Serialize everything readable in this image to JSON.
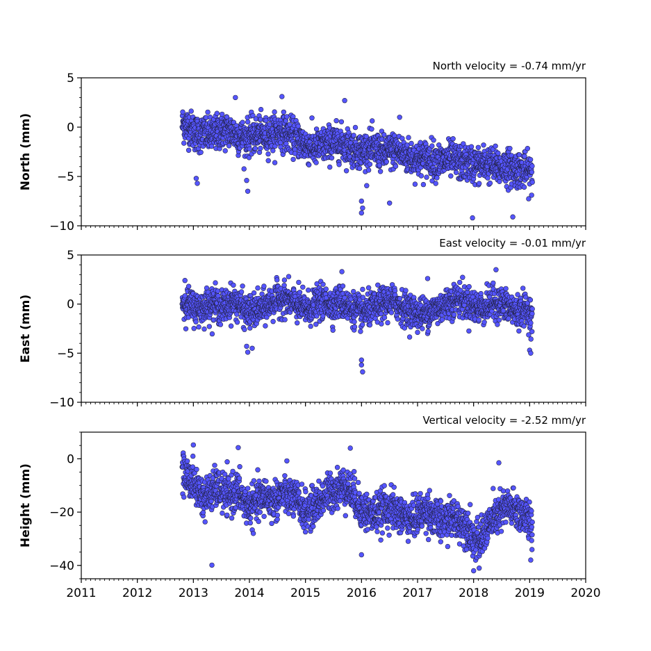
{
  "chart_data": [
    {
      "type": "scatter",
      "panel": "north",
      "title": "North velocity = -0.74 mm/yr",
      "ylabel": "North (mm)",
      "xlim": [
        2011,
        2020
      ],
      "ylim": [
        -10,
        5
      ],
      "yticks": [
        5,
        0,
        -5,
        -10
      ],
      "ytick_labels": [
        "5",
        "0",
        "−5",
        "−10"
      ],
      "marker_color": "#5555ff",
      "marker_edge": "#222244",
      "x": [
        2012.8,
        2012.9,
        2013.0,
        2013.1,
        2013.2,
        2013.3,
        2013.4,
        2013.5,
        2013.6,
        2013.7,
        2013.8,
        2013.9,
        2014.0,
        2014.1,
        2014.2,
        2014.3,
        2014.4,
        2014.5,
        2014.6,
        2014.7,
        2014.8,
        2014.9,
        2015.0,
        2015.1,
        2015.2,
        2015.3,
        2015.4,
        2015.5,
        2015.6,
        2015.7,
        2015.8,
        2015.9,
        2016.0,
        2016.1,
        2016.2,
        2016.3,
        2016.4,
        2016.5,
        2016.6,
        2016.7,
        2016.8,
        2016.9,
        2017.0,
        2017.1,
        2017.2,
        2017.3,
        2017.4,
        2017.5,
        2017.6,
        2017.7,
        2017.8,
        2017.9,
        2018.0,
        2018.1,
        2018.2,
        2018.3,
        2018.4,
        2018.5,
        2018.6,
        2018.7,
        2018.8,
        2018.9,
        2019.0,
        2019.05
      ],
      "y": [
        0.3,
        0.1,
        -0.4,
        -0.8,
        -0.5,
        -0.9,
        -0.6,
        -0.4,
        -0.3,
        -0.5,
        -0.9,
        -1.1,
        -1.0,
        -0.8,
        -0.7,
        -0.9,
        -0.6,
        -0.5,
        -0.4,
        -0.8,
        -1.0,
        -1.3,
        -1.8,
        -2.0,
        -2.1,
        -1.9,
        -1.7,
        -1.6,
        -1.5,
        -1.8,
        -2.0,
        -2.2,
        -2.4,
        -2.3,
        -2.2,
        -2.4,
        -2.6,
        -2.5,
        -2.3,
        -2.6,
        -2.9,
        -3.1,
        -3.3,
        -3.2,
        -3.1,
        -3.3,
        -3.5,
        -3.4,
        -3.2,
        -3.5,
        -3.7,
        -3.6,
        -3.8,
        -3.9,
        -3.7,
        -3.8,
        -4.0,
        -4.1,
        -4.0,
        -4.2,
        -4.3,
        -4.4,
        -4.6,
        -4.8
      ],
      "spread": 1.2,
      "outliers": [
        [
          2013.05,
          -5.2
        ],
        [
          2013.07,
          -5.7
        ],
        [
          2013.95,
          -5.4
        ],
        [
          2013.97,
          -6.5
        ],
        [
          2015.7,
          2.7
        ],
        [
          2016.0,
          -7.5
        ],
        [
          2016.0,
          -8.7
        ],
        [
          2016.02,
          -8.2
        ],
        [
          2016.5,
          -7.7
        ],
        [
          2017.98,
          -9.2
        ],
        [
          2018.7,
          -9.1
        ],
        [
          2014.58,
          3.1
        ],
        [
          2013.75,
          3.0
        ],
        [
          2016.68,
          1.0
        ]
      ]
    },
    {
      "type": "scatter",
      "panel": "east",
      "title": "East velocity = -0.01 mm/yr",
      "ylabel": "East (mm)",
      "xlim": [
        2011,
        2020
      ],
      "ylim": [
        -10,
        5
      ],
      "yticks": [
        5,
        0,
        -5,
        -10
      ],
      "ytick_labels": [
        "5",
        "0",
        "−5",
        "−10"
      ],
      "marker_color": "#5555ff",
      "marker_edge": "#222244",
      "x": [
        2012.8,
        2012.9,
        2013.0,
        2013.1,
        2013.2,
        2013.3,
        2013.4,
        2013.5,
        2013.6,
        2013.7,
        2013.8,
        2013.9,
        2014.0,
        2014.1,
        2014.2,
        2014.3,
        2014.4,
        2014.5,
        2014.6,
        2014.7,
        2014.8,
        2014.9,
        2015.0,
        2015.1,
        2015.2,
        2015.3,
        2015.4,
        2015.5,
        2015.6,
        2015.7,
        2015.8,
        2015.9,
        2016.0,
        2016.1,
        2016.2,
        2016.3,
        2016.4,
        2016.5,
        2016.6,
        2016.7,
        2016.8,
        2016.9,
        2017.0,
        2017.1,
        2017.2,
        2017.3,
        2017.4,
        2017.5,
        2017.6,
        2017.7,
        2017.8,
        2017.9,
        2018.0,
        2018.1,
        2018.2,
        2018.3,
        2018.4,
        2018.5,
        2018.6,
        2018.7,
        2018.8,
        2018.9,
        2019.0,
        2019.05
      ],
      "y": [
        0.2,
        0.0,
        -0.3,
        -0.5,
        -0.2,
        0.1,
        0.0,
        -0.4,
        -0.1,
        0.3,
        0.1,
        -0.6,
        -0.8,
        -0.7,
        -0.5,
        -0.2,
        0.2,
        0.5,
        0.6,
        0.4,
        0.0,
        -0.3,
        -0.5,
        -0.4,
        0.0,
        0.2,
        0.1,
        -0.2,
        0.3,
        0.0,
        -0.4,
        -0.6,
        -0.9,
        -0.7,
        -0.5,
        -0.2,
        0.1,
        0.3,
        0.2,
        -0.2,
        -0.5,
        -0.7,
        -0.9,
        -1.0,
        -0.8,
        -0.6,
        -0.3,
        0.0,
        0.3,
        0.5,
        0.4,
        0.1,
        -0.2,
        -0.4,
        -0.3,
        0.0,
        0.2,
        0.0,
        -0.3,
        -0.6,
        -0.8,
        -0.5,
        -0.9,
        -1.3
      ],
      "spread": 1.1,
      "outliers": [
        [
          2013.95,
          -4.3
        ],
        [
          2013.97,
          -4.9
        ],
        [
          2014.05,
          -4.5
        ],
        [
          2016.0,
          -5.7
        ],
        [
          2016.0,
          -6.2
        ],
        [
          2016.02,
          -6.9
        ],
        [
          2018.4,
          3.5
        ],
        [
          2015.65,
          3.3
        ],
        [
          2019.0,
          -4.7
        ],
        [
          2019.02,
          -5.0
        ],
        [
          2017.18,
          2.6
        ],
        [
          2012.85,
          2.4
        ]
      ]
    },
    {
      "type": "scatter",
      "panel": "height",
      "title": "Vertical velocity = -2.52 mm/yr",
      "ylabel": "Height (mm)",
      "xlim": [
        2011,
        2020
      ],
      "ylim": [
        -45,
        10
      ],
      "yticks": [
        0,
        -20,
        -40
      ],
      "ytick_labels": [
        "0",
        "−20",
        "−40"
      ],
      "marker_color": "#5555ff",
      "marker_edge": "#222244",
      "x": [
        2012.8,
        2012.9,
        2013.0,
        2013.1,
        2013.2,
        2013.3,
        2013.4,
        2013.5,
        2013.6,
        2013.7,
        2013.8,
        2013.9,
        2014.0,
        2014.1,
        2014.2,
        2014.3,
        2014.4,
        2014.5,
        2014.6,
        2014.7,
        2014.8,
        2014.9,
        2015.0,
        2015.1,
        2015.2,
        2015.3,
        2015.4,
        2015.5,
        2015.6,
        2015.7,
        2015.8,
        2015.9,
        2016.0,
        2016.1,
        2016.2,
        2016.3,
        2016.4,
        2016.5,
        2016.6,
        2016.7,
        2016.8,
        2016.9,
        2017.0,
        2017.1,
        2017.2,
        2017.3,
        2017.4,
        2017.5,
        2017.6,
        2017.7,
        2017.8,
        2017.9,
        2018.0,
        2018.1,
        2018.2,
        2018.3,
        2018.4,
        2018.5,
        2018.6,
        2018.7,
        2018.8,
        2018.9,
        2019.0,
        2019.05
      ],
      "y": [
        -5,
        -7,
        -9,
        -12,
        -15,
        -13,
        -11,
        -12,
        -14,
        -13,
        -12,
        -16,
        -18,
        -17,
        -15,
        -14,
        -16,
        -15,
        -13,
        -14,
        -15,
        -17,
        -20,
        -19,
        -17,
        -15,
        -13,
        -12,
        -11,
        -10,
        -12,
        -15,
        -19,
        -20,
        -21,
        -20,
        -19,
        -18,
        -20,
        -21,
        -22,
        -23,
        -21,
        -20,
        -19,
        -22,
        -24,
        -23,
        -22,
        -23,
        -24,
        -25,
        -30,
        -32,
        -27,
        -24,
        -22,
        -20,
        -18,
        -19,
        -20,
        -21,
        -24,
        -27
      ],
      "spread": 4.8,
      "outliers": [
        [
          2013.33,
          -39.9
        ],
        [
          2018.0,
          -42.0
        ],
        [
          2018.1,
          -41.0
        ],
        [
          2013.0,
          5.2
        ],
        [
          2013.8,
          4.2
        ],
        [
          2015.8,
          4.0
        ],
        [
          2018.45,
          -1.5
        ],
        [
          2019.02,
          -38.0
        ],
        [
          2016.0,
          -36.0
        ]
      ]
    }
  ],
  "x_axis": {
    "tick_labels": [
      "2011",
      "2012",
      "2013",
      "2014",
      "2015",
      "2016",
      "2017",
      "2018",
      "2019",
      "2020"
    ]
  }
}
